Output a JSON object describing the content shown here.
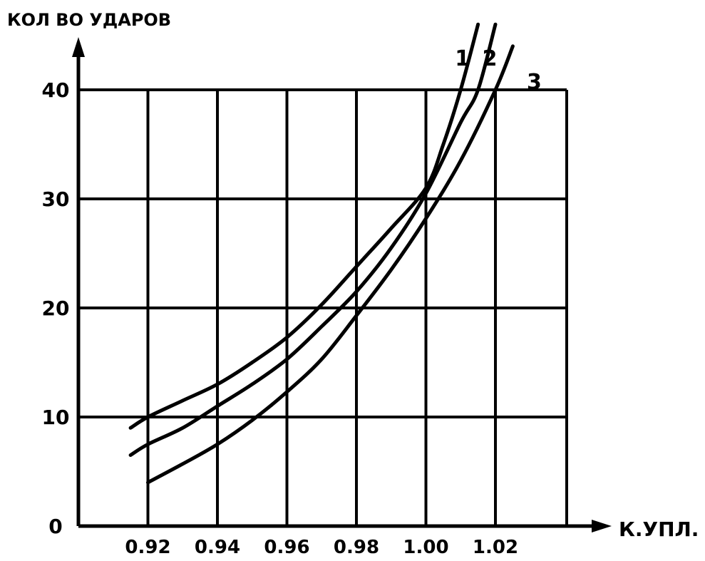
{
  "chart_data": {
    "type": "line",
    "title": "",
    "ylabel": "КОЛ ВО УДАРОВ",
    "xlabel": "К.УПЛ.",
    "xlim": [
      0.9,
      1.04
    ],
    "ylim": [
      0,
      44
    ],
    "grid": true,
    "legend": "none",
    "x_ticks": [
      "0.92",
      "0.94",
      "0.96",
      "0.98",
      "1.00",
      "1.02"
    ],
    "y_ticks": [
      "0",
      "10",
      "20",
      "30",
      "40"
    ],
    "series": [
      {
        "name": "1",
        "x": [
          0.915,
          0.92,
          0.93,
          0.94,
          0.95,
          0.96,
          0.97,
          0.98,
          0.99,
          1.0,
          1.005,
          1.01,
          1.015
        ],
        "y": [
          9,
          10,
          11.5,
          13,
          15,
          17.3,
          20.3,
          23.8,
          27.3,
          31,
          35,
          40,
          46
        ]
      },
      {
        "name": "2",
        "x": [
          0.915,
          0.92,
          0.93,
          0.94,
          0.95,
          0.96,
          0.97,
          0.98,
          0.99,
          1.0,
          1.01,
          1.015,
          1.02
        ],
        "y": [
          6.5,
          7.5,
          9,
          11,
          13,
          15.3,
          18.3,
          21.5,
          25.5,
          30.5,
          37,
          40,
          46
        ]
      },
      {
        "name": "3",
        "x": [
          0.92,
          0.93,
          0.94,
          0.95,
          0.96,
          0.97,
          0.98,
          0.99,
          1.0,
          1.01,
          1.02,
          1.025
        ],
        "y": [
          4,
          5.7,
          7.5,
          9.7,
          12.3,
          15.3,
          19.3,
          23.5,
          28.2,
          33.5,
          40,
          44
        ]
      }
    ]
  }
}
